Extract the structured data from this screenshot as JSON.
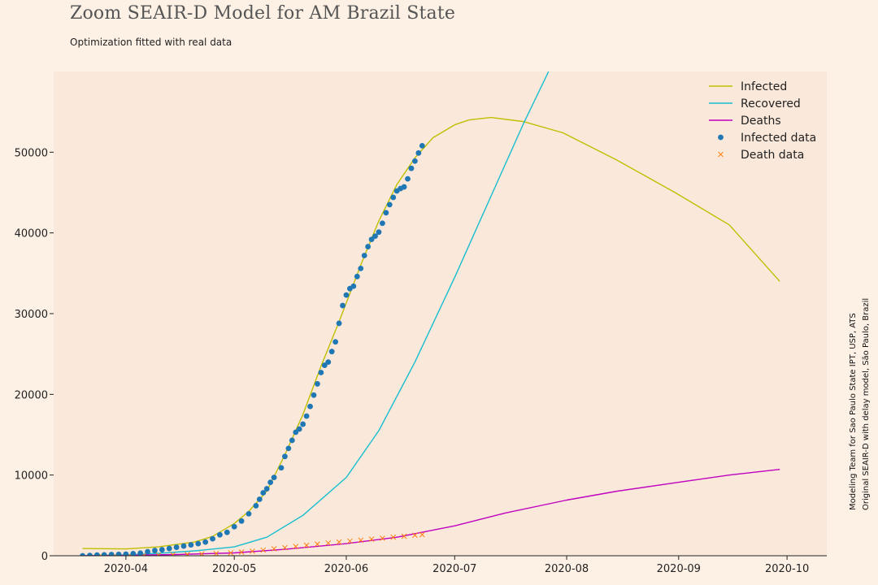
{
  "header": {
    "title": "Zoom SEAIR-D Model for AM Brazil State",
    "subtitle": "Optimization fitted with real data"
  },
  "credits": {
    "line1": "Modeling Team for Sao Paulo State IPT, USP, ATS",
    "line2": "Original SEAIR-D with delay model, São Paulo, Brazil"
  },
  "chart_data": {
    "type": "line",
    "plot_background": "#fae8db",
    "ylim": [
      0,
      60000
    ],
    "xlim": [
      "2020-03-12",
      "2020-10-12"
    ],
    "x_ticks": [
      "2020-04",
      "2020-05",
      "2020-06",
      "2020-07",
      "2020-08",
      "2020-09",
      "2020-10"
    ],
    "y_ticks": [
      0,
      10000,
      20000,
      30000,
      40000,
      50000
    ],
    "legend": {
      "position": "top-right",
      "entries": [
        {
          "label": "Infected",
          "marker": "line",
          "color": "#bfbf00"
        },
        {
          "label": "Recovered",
          "marker": "line",
          "color": "#17becf"
        },
        {
          "label": "Deaths",
          "marker": "line",
          "color": "#bf00bf"
        },
        {
          "label": "Infected data",
          "marker": "dot",
          "color": "#1f77b4"
        },
        {
          "label": "Death data",
          "marker": "x",
          "color": "#ff7f0e"
        }
      ]
    },
    "series": [
      {
        "name": "Infected",
        "kind": "line",
        "color": "#bfbf00",
        "points": [
          [
            "2020-03-20",
            900
          ],
          [
            "2020-04-01",
            850
          ],
          [
            "2020-04-10",
            1100
          ],
          [
            "2020-04-20",
            1700
          ],
          [
            "2020-04-25",
            2400
          ],
          [
            "2020-05-01",
            4000
          ],
          [
            "2020-05-05",
            5500
          ],
          [
            "2020-05-10",
            8000
          ],
          [
            "2020-05-15",
            12500
          ],
          [
            "2020-05-20",
            17500
          ],
          [
            "2020-05-25",
            23500
          ],
          [
            "2020-05-30",
            29000
          ],
          [
            "2020-06-05",
            36000
          ],
          [
            "2020-06-10",
            41500
          ],
          [
            "2020-06-15",
            46000
          ],
          [
            "2020-06-20",
            49300
          ],
          [
            "2020-06-25",
            51800
          ],
          [
            "2020-07-01",
            53400
          ],
          [
            "2020-07-05",
            54000
          ],
          [
            "2020-07-11",
            54300
          ],
          [
            "2020-07-20",
            53800
          ],
          [
            "2020-07-31",
            52400
          ],
          [
            "2020-08-15",
            49000
          ],
          [
            "2020-08-31",
            45000
          ],
          [
            "2020-09-15",
            41000
          ],
          [
            "2020-09-29",
            34000
          ]
        ]
      },
      {
        "name": "Recovered",
        "kind": "line",
        "color": "#17becf",
        "points": [
          [
            "2020-03-20",
            0
          ],
          [
            "2020-04-01",
            100
          ],
          [
            "2020-04-10",
            300
          ],
          [
            "2020-04-20",
            600
          ],
          [
            "2020-05-01",
            1100
          ],
          [
            "2020-05-10",
            2300
          ],
          [
            "2020-05-20",
            5000
          ],
          [
            "2020-06-01",
            9700
          ],
          [
            "2020-06-10",
            15500
          ],
          [
            "2020-06-20",
            24000
          ],
          [
            "2020-07-01",
            34500
          ],
          [
            "2020-07-10",
            43500
          ],
          [
            "2020-07-20",
            53500
          ],
          [
            "2020-07-27",
            60000
          ]
        ]
      },
      {
        "name": "Deaths",
        "kind": "line",
        "color": "#bf00bf",
        "points": [
          [
            "2020-03-20",
            0
          ],
          [
            "2020-04-01",
            50
          ],
          [
            "2020-04-15",
            150
          ],
          [
            "2020-05-01",
            350
          ],
          [
            "2020-05-15",
            800
          ],
          [
            "2020-06-01",
            1500
          ],
          [
            "2020-06-15",
            2300
          ],
          [
            "2020-07-01",
            3700
          ],
          [
            "2020-07-15",
            5300
          ],
          [
            "2020-08-01",
            6900
          ],
          [
            "2020-08-15",
            8000
          ],
          [
            "2020-09-01",
            9100
          ],
          [
            "2020-09-15",
            10000
          ],
          [
            "2020-09-29",
            10700
          ]
        ]
      },
      {
        "name": "Infected data",
        "kind": "scatter",
        "color": "#1f77b4",
        "points": [
          [
            "2020-03-20",
            0
          ],
          [
            "2020-03-22",
            40
          ],
          [
            "2020-03-24",
            80
          ],
          [
            "2020-03-26",
            110
          ],
          [
            "2020-03-28",
            150
          ],
          [
            "2020-03-30",
            170
          ],
          [
            "2020-04-01",
            200
          ],
          [
            "2020-04-03",
            260
          ],
          [
            "2020-04-05",
            330
          ],
          [
            "2020-04-07",
            500
          ],
          [
            "2020-04-09",
            650
          ],
          [
            "2020-04-11",
            750
          ],
          [
            "2020-04-13",
            900
          ],
          [
            "2020-04-15",
            1050
          ],
          [
            "2020-04-17",
            1200
          ],
          [
            "2020-04-19",
            1350
          ],
          [
            "2020-04-21",
            1500
          ],
          [
            "2020-04-23",
            1700
          ],
          [
            "2020-04-25",
            2100
          ],
          [
            "2020-04-27",
            2600
          ],
          [
            "2020-04-29",
            2900
          ],
          [
            "2020-05-01",
            3600
          ],
          [
            "2020-05-03",
            4300
          ],
          [
            "2020-05-05",
            5200
          ],
          [
            "2020-05-07",
            6200
          ],
          [
            "2020-05-08",
            7000
          ],
          [
            "2020-05-09",
            7800
          ],
          [
            "2020-05-10",
            8300
          ],
          [
            "2020-05-11",
            9100
          ],
          [
            "2020-05-12",
            9700
          ],
          [
            "2020-05-14",
            10900
          ],
          [
            "2020-05-15",
            12300
          ],
          [
            "2020-05-16",
            13300
          ],
          [
            "2020-05-17",
            14300
          ],
          [
            "2020-05-18",
            15300
          ],
          [
            "2020-05-19",
            15700
          ],
          [
            "2020-05-20",
            16300
          ],
          [
            "2020-05-21",
            17300
          ],
          [
            "2020-05-22",
            18500
          ],
          [
            "2020-05-23",
            19900
          ],
          [
            "2020-05-24",
            21300
          ],
          [
            "2020-05-25",
            22700
          ],
          [
            "2020-05-26",
            23600
          ],
          [
            "2020-05-27",
            24000
          ],
          [
            "2020-05-28",
            25300
          ],
          [
            "2020-05-29",
            26500
          ],
          [
            "2020-05-30",
            28800
          ],
          [
            "2020-05-31",
            31000
          ],
          [
            "2020-06-01",
            32300
          ],
          [
            "2020-06-02",
            33100
          ],
          [
            "2020-06-03",
            33400
          ],
          [
            "2020-06-04",
            34600
          ],
          [
            "2020-06-05",
            35600
          ],
          [
            "2020-06-06",
            37200
          ],
          [
            "2020-06-07",
            38300
          ],
          [
            "2020-06-08",
            39200
          ],
          [
            "2020-06-09",
            39600
          ],
          [
            "2020-06-10",
            40100
          ],
          [
            "2020-06-11",
            41200
          ],
          [
            "2020-06-12",
            42500
          ],
          [
            "2020-06-13",
            43500
          ],
          [
            "2020-06-14",
            44400
          ],
          [
            "2020-06-15",
            45200
          ],
          [
            "2020-06-16",
            45500
          ],
          [
            "2020-06-17",
            45700
          ],
          [
            "2020-06-18",
            46700
          ],
          [
            "2020-06-19",
            48000
          ],
          [
            "2020-06-20",
            48900
          ],
          [
            "2020-06-21",
            49900
          ],
          [
            "2020-06-22",
            50800
          ]
        ]
      },
      {
        "name": "Death data",
        "kind": "scatter",
        "color": "#ff7f0e",
        "points": [
          [
            "2020-03-25",
            0
          ],
          [
            "2020-03-29",
            5
          ],
          [
            "2020-04-02",
            15
          ],
          [
            "2020-04-06",
            40
          ],
          [
            "2020-04-10",
            80
          ],
          [
            "2020-04-14",
            120
          ],
          [
            "2020-04-18",
            160
          ],
          [
            "2020-04-22",
            220
          ],
          [
            "2020-04-26",
            280
          ],
          [
            "2020-04-30",
            350
          ],
          [
            "2020-05-03",
            450
          ],
          [
            "2020-05-06",
            560
          ],
          [
            "2020-05-09",
            700
          ],
          [
            "2020-05-12",
            860
          ],
          [
            "2020-05-15",
            1000
          ],
          [
            "2020-05-18",
            1150
          ],
          [
            "2020-05-21",
            1300
          ],
          [
            "2020-05-24",
            1450
          ],
          [
            "2020-05-27",
            1580
          ],
          [
            "2020-05-30",
            1700
          ],
          [
            "2020-06-02",
            1820
          ],
          [
            "2020-06-05",
            1930
          ],
          [
            "2020-06-08",
            2050
          ],
          [
            "2020-06-11",
            2170
          ],
          [
            "2020-06-14",
            2300
          ],
          [
            "2020-06-17",
            2420
          ],
          [
            "2020-06-20",
            2540
          ],
          [
            "2020-06-22",
            2620
          ]
        ]
      }
    ]
  }
}
